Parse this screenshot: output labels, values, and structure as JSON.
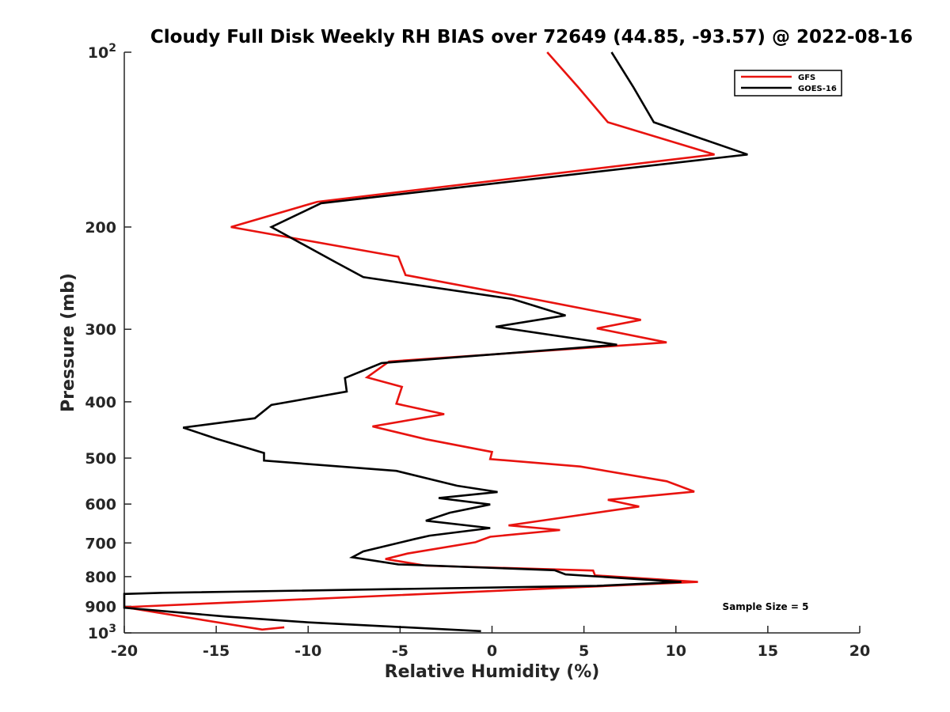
{
  "chart_data": {
    "type": "line",
    "title": "Cloudy Full Disk Weekly RH BIAS over 72649 (44.85, -93.57) @ 2022-08-16",
    "xlabel": "Relative Humidity (%)",
    "ylabel": "Pressure (mb)",
    "xlim": [
      -20,
      20
    ],
    "ylim": [
      100,
      1000
    ],
    "y_scale": "log",
    "y_reversed": true,
    "grid": false,
    "legend_position": "top-right",
    "x_ticks": [
      "-20",
      "-15",
      "-10",
      "-5",
      "0",
      "5",
      "10",
      "15",
      "20"
    ],
    "y_ticks": [
      {
        "base": "10",
        "exp": "2",
        "value": 100
      },
      {
        "label": "200",
        "value": 200
      },
      {
        "label": "300",
        "value": 300
      },
      {
        "label": "400",
        "value": 400
      },
      {
        "label": "500",
        "value": 500
      },
      {
        "label": "600",
        "value": 600
      },
      {
        "label": "700",
        "value": 700
      },
      {
        "label": "800",
        "value": 800
      },
      {
        "label": "900",
        "value": 900
      },
      {
        "base": "10",
        "exp": "3",
        "value": 1000
      }
    ],
    "annotation": "Sample Size = 5",
    "series": [
      {
        "name": "GFS",
        "color": "#e8130f",
        "points": [
          [
            3.0,
            100
          ],
          [
            4.7,
            115
          ],
          [
            6.3,
            132
          ],
          [
            12.1,
            150
          ],
          [
            -9.5,
            181
          ],
          [
            -14.2,
            200
          ],
          [
            -5.1,
            225
          ],
          [
            -4.7,
            242
          ],
          [
            2.5,
            267
          ],
          [
            8.1,
            289
          ],
          [
            5.7,
            299
          ],
          [
            9.5,
            316
          ],
          [
            -5.6,
            341
          ],
          [
            -6.8,
            363
          ],
          [
            -4.9,
            377
          ],
          [
            -5.2,
            403
          ],
          [
            -2.6,
            420
          ],
          [
            -6.5,
            441
          ],
          [
            -3.6,
            464
          ],
          [
            0.0,
            488
          ],
          [
            -0.1,
            502
          ],
          [
            4.8,
            517
          ],
          [
            9.5,
            548
          ],
          [
            11.0,
            571
          ],
          [
            6.3,
            590
          ],
          [
            8.0,
            606
          ],
          [
            0.9,
            653
          ],
          [
            3.7,
            665
          ],
          [
            -0.1,
            683
          ],
          [
            -0.9,
            698
          ],
          [
            -4.6,
            730
          ],
          [
            -5.8,
            746
          ],
          [
            -3.6,
            766
          ],
          [
            5.5,
            781
          ],
          [
            5.6,
            796
          ],
          [
            11.2,
            817
          ],
          [
            -20.0,
            903
          ],
          [
            -12.5,
            987
          ],
          [
            -11.3,
            978
          ]
        ]
      },
      {
        "name": "GOES-16",
        "color": "#000000",
        "points": [
          [
            6.5,
            100
          ],
          [
            7.7,
            115
          ],
          [
            8.8,
            132
          ],
          [
            13.9,
            150
          ],
          [
            -9.3,
            182
          ],
          [
            -12.0,
            200
          ],
          [
            -8.5,
            230
          ],
          [
            -7.0,
            244
          ],
          [
            1.1,
            266
          ],
          [
            4.0,
            284
          ],
          [
            0.2,
            297
          ],
          [
            6.8,
            319
          ],
          [
            -6.0,
            343
          ],
          [
            -8.0,
            364
          ],
          [
            -7.9,
            384
          ],
          [
            -12.0,
            405
          ],
          [
            -12.9,
            427
          ],
          [
            -16.8,
            443
          ],
          [
            -15.0,
            463
          ],
          [
            -12.4,
            490
          ],
          [
            -12.4,
            505
          ],
          [
            -5.2,
            526
          ],
          [
            -1.9,
            558
          ],
          [
            0.3,
            572
          ],
          [
            -2.9,
            586
          ],
          [
            -0.1,
            601
          ],
          [
            -2.3,
            621
          ],
          [
            -3.6,
            641
          ],
          [
            -0.1,
            660
          ],
          [
            -3.4,
            680
          ],
          [
            -4.2,
            689
          ],
          [
            -7.0,
            724
          ],
          [
            -7.6,
            741
          ],
          [
            -5.1,
            762
          ],
          [
            3.4,
            780
          ],
          [
            4.0,
            793
          ],
          [
            10.3,
            817
          ],
          [
            5.7,
            830
          ],
          [
            -17.9,
            853
          ],
          [
            -20.0,
            857
          ],
          [
            -20.0,
            905
          ],
          [
            -14.5,
            937
          ],
          [
            -10.0,
            959
          ],
          [
            -0.6,
            993
          ]
        ]
      }
    ]
  }
}
